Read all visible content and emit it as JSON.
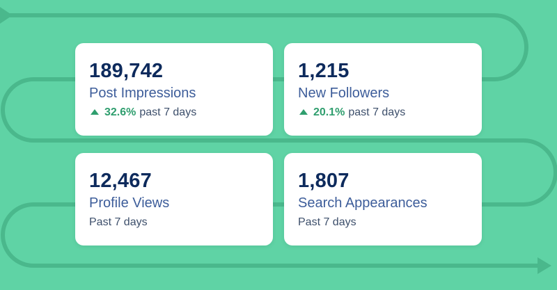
{
  "colors": {
    "background": "#5fd3a5",
    "path": "#4ab88c",
    "card": "#ffffff",
    "value_text": "#0d2a5c",
    "label_text": "#3d5d9a",
    "positive": "#2f9e6e"
  },
  "cards": [
    {
      "value": "189,742",
      "label": "Post Impressions",
      "trend_icon": "arrow-up-icon",
      "change": "32.6%",
      "period": "past 7 days"
    },
    {
      "value": "1,215",
      "label": "New Followers",
      "trend_icon": "arrow-up-icon",
      "change": "20.1%",
      "period": "past 7 days"
    },
    {
      "value": "12,467",
      "label": "Profile Views",
      "period": "Past 7 days"
    },
    {
      "value": "1,807",
      "label": "Search Appearances",
      "period": "Past 7 days"
    }
  ]
}
